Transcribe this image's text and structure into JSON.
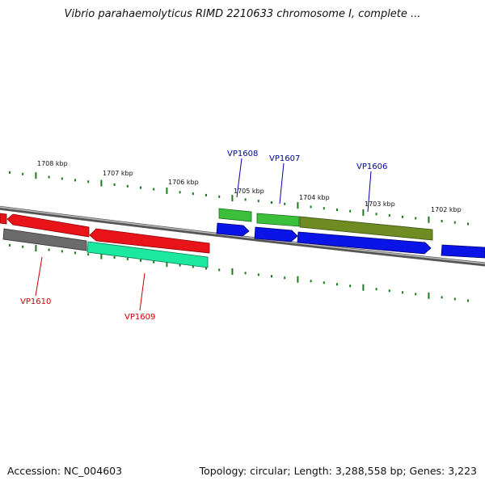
{
  "title": "Vibrio parahaemolyticus RIMD 2210633 chromosome I, complete ...",
  "footer": {
    "accession": "Accession: NC_004603",
    "summary": "Topology: circular; Length: 3,288,558 bp; Genes: 3,223"
  },
  "ruler": {
    "labels": [
      "1708 kbp",
      "1707 kbp",
      "1706 kbp",
      "1705 kbp",
      "1704 kbp",
      "1703 kbp",
      "1702 kbp"
    ]
  },
  "genes": [
    {
      "name": "VP1610",
      "label_color": "#cc0000"
    },
    {
      "name": "VP1609",
      "label_color": "#cc0000"
    },
    {
      "name": "VP1608",
      "label_color": "#0000aa"
    },
    {
      "name": "VP1607",
      "label_color": "#0000aa"
    },
    {
      "name": "VP1606",
      "label_color": "#0000aa"
    }
  ],
  "colors": {
    "red": "#e8141a",
    "gray": "#6b6b6b",
    "teal": "#1de8a0",
    "green": "#3cc03c",
    "olive": "#6e8c22",
    "blue": "#0a14e6",
    "tick": "#1e7a1e",
    "backbone": "#808080"
  }
}
